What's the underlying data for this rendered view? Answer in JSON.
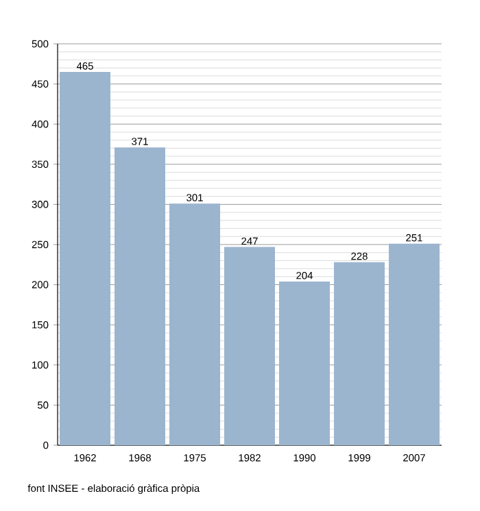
{
  "chart_data": {
    "type": "bar",
    "categories": [
      "1962",
      "1968",
      "1975",
      "1982",
      "1990",
      "1999",
      "2007"
    ],
    "values": [
      465,
      371,
      301,
      247,
      204,
      228,
      251
    ],
    "color": "#9bb5cf",
    "ylim": [
      0,
      500
    ],
    "yticks": [
      0,
      50,
      100,
      150,
      200,
      250,
      300,
      350,
      400,
      450,
      500
    ],
    "grid": "y",
    "data_labels": true,
    "annotations": [
      "font INSEE - elaboració gràfica pròpia"
    ]
  }
}
